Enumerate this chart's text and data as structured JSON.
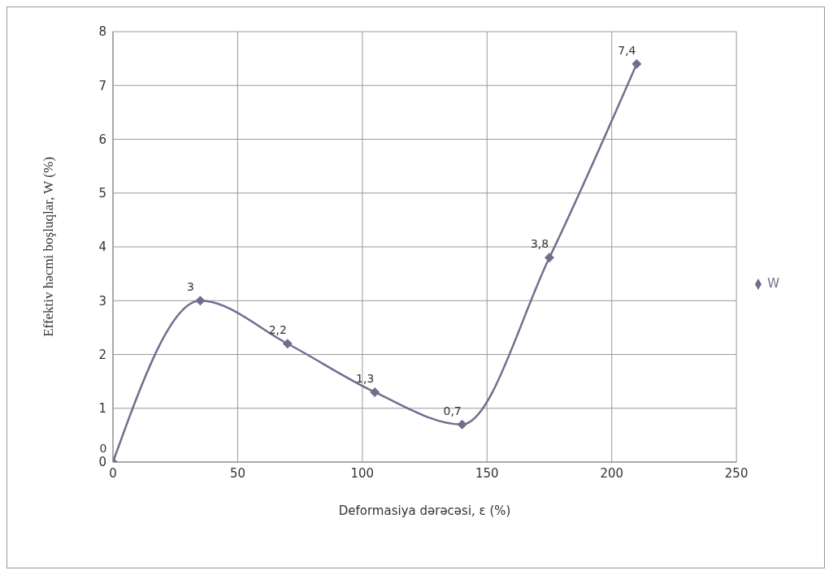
{
  "chart_data": {
    "type": "line",
    "xlabel": "Deformasiya dərəcəsi, ε (%)",
    "ylabel": "Effektiv həcmi boşluqlar,  W (%)",
    "x": [
      0,
      35,
      70,
      105,
      140,
      175,
      210
    ],
    "series": [
      {
        "name": "W",
        "color": "#6e6f8e",
        "values": [
          0,
          3,
          2.2,
          1.3,
          0.7,
          3.8,
          7.4
        ],
        "value_labels": [
          "0",
          "3",
          "2,2",
          "1,3",
          "0,7",
          "3,8",
          "7,4"
        ]
      }
    ],
    "xlim": [
      0,
      250
    ],
    "xticks": [
      0,
      50,
      100,
      150,
      200,
      250
    ],
    "ylim": [
      0,
      8
    ],
    "yticks": [
      0,
      1,
      2,
      3,
      4,
      5,
      6,
      7,
      8
    ],
    "grid": true,
    "legend": "right",
    "marker": "diamond",
    "line_style": "solid"
  }
}
